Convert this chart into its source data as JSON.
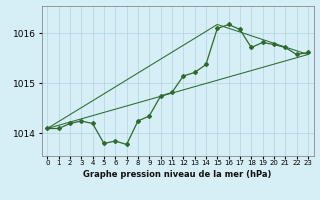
{
  "title": "Graphe pression niveau de la mer (hPa)",
  "bg_color": "#d6eef5",
  "plot_bg_color": "#d6eef5",
  "grid_color": "#b0d4e0",
  "line_color": "#2d6a2d",
  "xlim": [
    -0.5,
    23.5
  ],
  "ylim": [
    1013.55,
    1016.55
  ],
  "yticks": [
    1014,
    1015,
    1016
  ],
  "xticks": [
    0,
    1,
    2,
    3,
    4,
    5,
    6,
    7,
    8,
    9,
    10,
    11,
    12,
    13,
    14,
    15,
    16,
    17,
    18,
    19,
    20,
    21,
    22,
    23
  ],
  "main_line_x": [
    0,
    1,
    2,
    3,
    4,
    5,
    6,
    7,
    8,
    9,
    10,
    11,
    12,
    13,
    14,
    15,
    16,
    17,
    18,
    19,
    20,
    21,
    22,
    23
  ],
  "main_line_y": [
    1014.1,
    1014.1,
    1014.2,
    1014.25,
    1014.2,
    1013.8,
    1013.85,
    1013.78,
    1014.25,
    1014.35,
    1014.75,
    1014.82,
    1015.15,
    1015.22,
    1015.38,
    1016.1,
    1016.18,
    1016.08,
    1015.72,
    1015.82,
    1015.78,
    1015.72,
    1015.58,
    1015.62
  ],
  "low_line_x": [
    0,
    23
  ],
  "low_line_y": [
    1014.1,
    1015.58
  ],
  "up_line_x": [
    0,
    15,
    23
  ],
  "up_line_y": [
    1014.1,
    1016.18,
    1015.58
  ],
  "title_fontsize": 6.0,
  "ytick_fontsize": 6.5,
  "xtick_fontsize": 5.0
}
